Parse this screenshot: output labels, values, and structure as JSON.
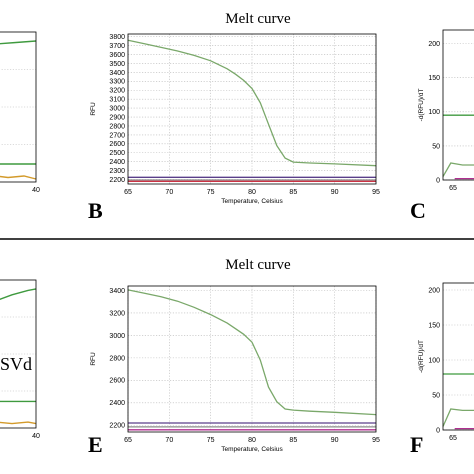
{
  "titles": {
    "top": "Melt curve",
    "bottom": "Melt curve"
  },
  "labels": {
    "B": "B",
    "C": "C",
    "E": "E",
    "F": "F",
    "svd_text": "SVd"
  },
  "colors": {
    "green": "#3f9a3f",
    "curve": "#7aa86a",
    "purple": "#5a3f8a",
    "gray": "#8a8a8a",
    "orange": "#d39a2a",
    "red": "#cc3344",
    "magenta": "#b03090"
  },
  "chart_data": [
    {
      "id": "A",
      "type": "line",
      "partial": true,
      "x": {
        "ticks": [
          "40"
        ],
        "range": [
          30,
          40
        ]
      },
      "y": {
        "ticks": []
      },
      "series": [
        {
          "values": [
            [
              30,
              0.92
            ],
            [
              35,
              0.93
            ],
            [
              40,
              0.94
            ]
          ],
          "color": "#3f9a3f"
        },
        {
          "values": [
            [
              30,
              0.12
            ],
            [
              40,
              0.12
            ]
          ],
          "color": "#3f9a3f"
        },
        {
          "values": [
            [
              30,
              0.04
            ],
            [
              33,
              0.03
            ],
            [
              37,
              0.04
            ],
            [
              40,
              0.02
            ]
          ],
          "color": "#d39a2a"
        }
      ]
    },
    {
      "id": "B",
      "type": "line",
      "xlabel": "Temperature, Celsius",
      "ylabel": "RFU",
      "xlim": [
        65,
        95
      ],
      "ylim": [
        2150,
        3830
      ],
      "xticks": [
        "65",
        "70",
        "75",
        "80",
        "85",
        "90",
        "95"
      ],
      "yticks": [
        "2200",
        "2300",
        "2400",
        "2500",
        "2600",
        "2700",
        "2800",
        "2900",
        "3000",
        "3100",
        "3200",
        "3300",
        "3400",
        "3500",
        "3600",
        "3700",
        "3800"
      ],
      "series": [
        {
          "color": "#7aa86a",
          "x": [
            65,
            67,
            69,
            71,
            73,
            75,
            77,
            78,
            79,
            80,
            81,
            82,
            83,
            84,
            85,
            87,
            90,
            95
          ],
          "y": [
            3760,
            3720,
            3680,
            3640,
            3590,
            3530,
            3440,
            3380,
            3310,
            3220,
            3060,
            2820,
            2580,
            2440,
            2395,
            2385,
            2375,
            2355
          ]
        },
        {
          "color": "#5a3f8a",
          "x": [
            65,
            95
          ],
          "y": [
            2225,
            2225
          ]
        },
        {
          "color": "#8a8a8a",
          "x": [
            65,
            95
          ],
          "y": [
            2195,
            2195
          ]
        },
        {
          "color": "#cc3344",
          "x": [
            65,
            95
          ],
          "y": [
            2180,
            2180
          ]
        }
      ]
    },
    {
      "id": "C",
      "type": "line",
      "partial": true,
      "ylabel": "-d(RFU)/dT",
      "xticks": [
        "65"
      ],
      "ylim": [
        0,
        220
      ],
      "yticks": [
        "0",
        "50",
        "100",
        "150",
        "200"
      ],
      "series": [
        {
          "color": "#3f9a3f",
          "values": [
            [
              0,
              95
            ],
            [
              1,
              95
            ]
          ]
        },
        {
          "color": "#7aa86a",
          "values": [
            [
              0,
              5
            ],
            [
              0.2,
              25
            ],
            [
              0.5,
              22
            ],
            [
              1,
              22
            ]
          ]
        },
        {
          "color": "#b03090",
          "values": [
            [
              0.3,
              2
            ],
            [
              1,
              2
            ]
          ]
        }
      ]
    },
    {
      "id": "D",
      "type": "line",
      "partial": true,
      "x": {
        "ticks": [
          "40"
        ],
        "range": [
          30,
          40
        ]
      },
      "y": {
        "ticks": []
      },
      "series": [
        {
          "values": [
            [
              30,
              0.86
            ],
            [
              34,
              0.9
            ],
            [
              38,
              0.93
            ],
            [
              40,
              0.94
            ]
          ],
          "color": "#3f9a3f"
        },
        {
          "values": [
            [
              30,
              0.18
            ],
            [
              40,
              0.18
            ]
          ],
          "color": "#3f9a3f"
        },
        {
          "values": [
            [
              30,
              0.04
            ],
            [
              34,
              0.03
            ],
            [
              38,
              0.04
            ],
            [
              40,
              0.03
            ]
          ],
          "color": "#d39a2a"
        }
      ]
    },
    {
      "id": "E",
      "type": "line",
      "xlabel": "Temperature, Celsius",
      "ylabel": "RFU",
      "xlim": [
        65,
        95
      ],
      "ylim": [
        2140,
        3440
      ],
      "xticks": [
        "65",
        "70",
        "75",
        "80",
        "85",
        "90",
        "95"
      ],
      "yticks": [
        "2200",
        "2400",
        "2600",
        "2800",
        "3000",
        "3200",
        "3400"
      ],
      "series": [
        {
          "color": "#7aa86a",
          "x": [
            65,
            67,
            69,
            71,
            73,
            75,
            77,
            78,
            79,
            80,
            81,
            82,
            83,
            84,
            85,
            87,
            90,
            95
          ],
          "y": [
            3405,
            3375,
            3345,
            3305,
            3250,
            3185,
            3110,
            3060,
            3010,
            2940,
            2780,
            2540,
            2410,
            2345,
            2335,
            2325,
            2315,
            2295
          ]
        },
        {
          "color": "#5a3f8a",
          "x": [
            65,
            95
          ],
          "y": [
            2220,
            2220
          ]
        },
        {
          "color": "#8a8a8a",
          "x": [
            65,
            95
          ],
          "y": [
            2185,
            2185
          ]
        },
        {
          "color": "#b03090",
          "x": [
            65,
            95
          ],
          "y": [
            2160,
            2160
          ]
        }
      ]
    },
    {
      "id": "F",
      "type": "line",
      "partial": true,
      "ylabel": "-d(RFU)/dT",
      "xticks": [
        "65"
      ],
      "ylim": [
        0,
        210
      ],
      "yticks": [
        "0",
        "50",
        "100",
        "150",
        "200"
      ],
      "series": [
        {
          "color": "#3f9a3f",
          "values": [
            [
              0,
              80
            ],
            [
              1,
              80
            ]
          ]
        },
        {
          "color": "#7aa86a",
          "values": [
            [
              0,
              5
            ],
            [
              0.2,
              30
            ],
            [
              0.5,
              28
            ],
            [
              1,
              28
            ]
          ]
        },
        {
          "color": "#b03090",
          "values": [
            [
              0.3,
              2
            ],
            [
              1,
              2
            ]
          ]
        }
      ]
    }
  ]
}
